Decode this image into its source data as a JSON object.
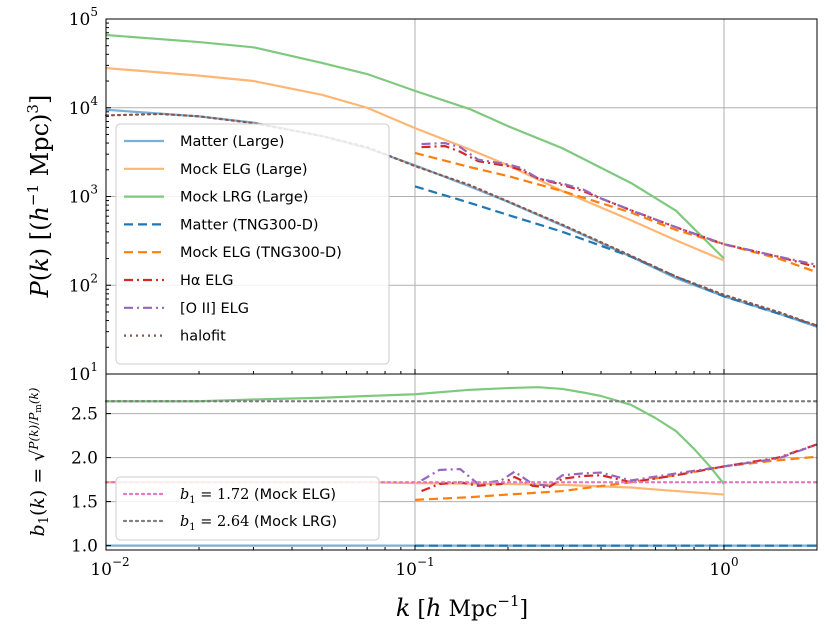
{
  "chart_data": [
    {
      "type": "line",
      "panel": "top",
      "xscale": "log",
      "yscale": "log",
      "xlim": [
        0.01,
        2.0
      ],
      "ylim": [
        10,
        100000
      ],
      "ylabel": "P(k) [(h^-1 Mpc)^3]",
      "x_ticks": [
        0.01,
        0.1,
        1
      ],
      "x_tick_labels": [
        "10^-2",
        "10^-1",
        "10^0"
      ],
      "y_ticks": [
        10,
        100,
        1000,
        10000,
        100000
      ],
      "y_tick_labels": [
        {
          "base": "10",
          "exp": "1"
        },
        {
          "base": "10",
          "exp": "2"
        },
        {
          "base": "10",
          "exp": "3"
        },
        {
          "base": "10",
          "exp": "4"
        },
        {
          "base": "10",
          "exp": "5"
        }
      ],
      "grid": true,
      "legend_position": "center-left",
      "series": [
        {
          "name": "Matter (Large)",
          "color": "#7aafd6",
          "style": "solid",
          "x": [
            0.01,
            0.02,
            0.03,
            0.05,
            0.07,
            0.1,
            0.15,
            0.2,
            0.3,
            0.5,
            0.7,
            1.0,
            1.5,
            2.0
          ],
          "y": [
            9500,
            8000,
            6800,
            4800,
            3500,
            2250,
            1300,
            870,
            470,
            210,
            120,
            75,
            48,
            34
          ]
        },
        {
          "name": "Mock ELG (Large)",
          "color": "#ffb574",
          "style": "solid",
          "x": [
            0.01,
            0.02,
            0.03,
            0.05,
            0.07,
            0.1,
            0.15,
            0.2,
            0.3,
            0.5,
            0.7,
            1.0
          ],
          "y": [
            28000,
            23000,
            20000,
            14000,
            10000,
            5900,
            3400,
            2250,
            1150,
            540,
            320,
            190
          ]
        },
        {
          "name": "Mock LRG (Large)",
          "color": "#7fc97f",
          "style": "solid",
          "x": [
            0.01,
            0.02,
            0.03,
            0.05,
            0.07,
            0.1,
            0.15,
            0.2,
            0.3,
            0.5,
            0.7,
            1.0
          ],
          "y": [
            66000,
            55000,
            48000,
            32000,
            24000,
            15500,
            9700,
            6200,
            3500,
            1420,
            690,
            200
          ]
        },
        {
          "name": "Matter (TNG300-D)",
          "color": "#1f77b4",
          "style": "dashed",
          "x": [
            0.1,
            0.15,
            0.2,
            0.3,
            0.5,
            0.7,
            1.0,
            1.5,
            2.0
          ],
          "y": [
            1300,
            850,
            620,
            400,
            210,
            125,
            75,
            48,
            35
          ]
        },
        {
          "name": "Mock ELG (TNG300-D)",
          "color": "#ff7f0e",
          "style": "dashed",
          "x": [
            0.1,
            0.15,
            0.2,
            0.3,
            0.5,
            0.7,
            1.0,
            1.5,
            2.0
          ],
          "y": [
            3100,
            2150,
            1700,
            1150,
            660,
            420,
            290,
            200,
            140
          ]
        },
        {
          "name": "Hα ELG",
          "color": "#d62728",
          "style": "dashdot",
          "x": [
            0.105,
            0.125,
            0.14,
            0.16,
            0.2,
            0.22,
            0.25,
            0.3,
            0.35,
            0.4,
            0.5,
            0.7,
            1.0,
            1.5,
            2.0
          ],
          "y": [
            3600,
            3700,
            3200,
            2500,
            2200,
            2000,
            1600,
            1350,
            1150,
            950,
            700,
            450,
            290,
            210,
            160
          ]
        },
        {
          "name": "[O II] ELG",
          "color": "#9467bd",
          "style": "dashdot",
          "x": [
            0.105,
            0.125,
            0.14,
            0.16,
            0.2,
            0.22,
            0.25,
            0.3,
            0.35,
            0.4,
            0.5,
            0.7,
            1.0,
            1.5,
            2.0
          ],
          "y": [
            3900,
            4000,
            3600,
            2600,
            2300,
            2100,
            1600,
            1400,
            1200,
            950,
            700,
            450,
            290,
            210,
            170
          ]
        },
        {
          "name": "halofit",
          "color": "#8c564b",
          "style": "dotted",
          "x": [
            0.01,
            0.015,
            0.02,
            0.03,
            0.05,
            0.07,
            0.1,
            0.15,
            0.2,
            0.3,
            0.5,
            0.7,
            1.0,
            1.5,
            2.0
          ],
          "y": [
            8200,
            8500,
            8000,
            6700,
            4800,
            3600,
            2200,
            1350,
            880,
            480,
            215,
            125,
            78,
            50,
            35
          ]
        }
      ]
    },
    {
      "type": "line",
      "panel": "bottom",
      "xscale": "log",
      "yscale": "linear",
      "xlim": [
        0.01,
        2.0
      ],
      "ylim": [
        0.95,
        2.95
      ],
      "xlabel": "k [h Mpc^-1]",
      "ylabel": "b_1(k) = sqrt(P(k)/P_m(k))",
      "y_ticks": [
        1.0,
        1.5,
        2.0,
        2.5
      ],
      "y_tick_labels": [
        "1.0",
        "1.5",
        "2.0",
        "2.5"
      ],
      "grid": true,
      "legend_position": "lower-left",
      "series": [
        {
          "name": "Matter (Large)",
          "color": "#7aafd6",
          "style": "solid",
          "x": [
            0.01,
            2.0
          ],
          "y": [
            1.0,
            1.0
          ],
          "in_legend": false
        },
        {
          "name": "Matter (TNG300-D)",
          "color": "#1f77b4",
          "style": "dashed",
          "x": [
            0.1,
            2.0
          ],
          "y": [
            1.0,
            1.0
          ],
          "in_legend": false
        },
        {
          "name": "Mock ELG (Large)",
          "color": "#ffb574",
          "style": "solid",
          "x": [
            0.01,
            0.03,
            0.07,
            0.1,
            0.2,
            0.3,
            0.5,
            0.7,
            1.0
          ],
          "y": [
            1.72,
            1.72,
            1.72,
            1.71,
            1.7,
            1.69,
            1.66,
            1.62,
            1.58
          ],
          "in_legend": false
        },
        {
          "name": "Mock LRG (Large)",
          "color": "#7fc97f",
          "style": "solid",
          "x": [
            0.01,
            0.02,
            0.03,
            0.05,
            0.07,
            0.1,
            0.15,
            0.2,
            0.25,
            0.3,
            0.35,
            0.4,
            0.5,
            0.6,
            0.7,
            0.8,
            0.9,
            1.0
          ],
          "y": [
            2.64,
            2.64,
            2.66,
            2.68,
            2.7,
            2.72,
            2.77,
            2.79,
            2.8,
            2.78,
            2.74,
            2.7,
            2.6,
            2.45,
            2.3,
            2.1,
            1.9,
            1.7
          ],
          "in_legend": false
        },
        {
          "name": "Mock ELG (TNG300-D)",
          "color": "#ff7f0e",
          "style": "dashed",
          "x": [
            0.1,
            0.15,
            0.2,
            0.3,
            0.5,
            0.7,
            1.0,
            1.5,
            2.0
          ],
          "y": [
            1.52,
            1.55,
            1.58,
            1.62,
            1.72,
            1.8,
            1.9,
            1.97,
            2.01
          ],
          "in_legend": false
        },
        {
          "name": "Hα ELG",
          "color": "#d62728",
          "style": "dashdot",
          "x": [
            0.105,
            0.12,
            0.14,
            0.16,
            0.19,
            0.21,
            0.24,
            0.27,
            0.3,
            0.35,
            0.4,
            0.5,
            0.7,
            1.0,
            1.5,
            2.0
          ],
          "y": [
            1.62,
            1.7,
            1.72,
            1.68,
            1.7,
            1.78,
            1.68,
            1.66,
            1.76,
            1.79,
            1.8,
            1.72,
            1.8,
            1.9,
            2.0,
            2.15
          ],
          "in_legend": false
        },
        {
          "name": "[O II] ELG",
          "color": "#9467bd",
          "style": "dashdot",
          "x": [
            0.105,
            0.12,
            0.14,
            0.16,
            0.19,
            0.21,
            0.24,
            0.27,
            0.3,
            0.35,
            0.4,
            0.5,
            0.7,
            1.0,
            1.5,
            2.0
          ],
          "y": [
            1.74,
            1.86,
            1.87,
            1.7,
            1.74,
            1.84,
            1.7,
            1.68,
            1.8,
            1.82,
            1.83,
            1.74,
            1.82,
            1.9,
            1.99,
            2.15
          ],
          "in_legend": false
        },
        {
          "name": "b_1 = 1.72 (Mock ELG)",
          "color": "#e377c2",
          "style": "dotted",
          "x": [
            0.01,
            2.0
          ],
          "y": [
            1.72,
            1.72
          ],
          "legend_math": "b",
          "legend_sub": "1",
          "legend_value": " = 1.72",
          "legend_text": " (Mock ELG)"
        },
        {
          "name": "b_1 = 2.64 (Mock LRG)",
          "color": "#7f7f7f",
          "style": "dotted",
          "x": [
            0.01,
            2.0
          ],
          "y": [
            2.64,
            2.64
          ],
          "legend_math": "b",
          "legend_sub": "1",
          "legend_value": " = 2.64",
          "legend_text": " (Mock LRG)"
        }
      ]
    }
  ]
}
